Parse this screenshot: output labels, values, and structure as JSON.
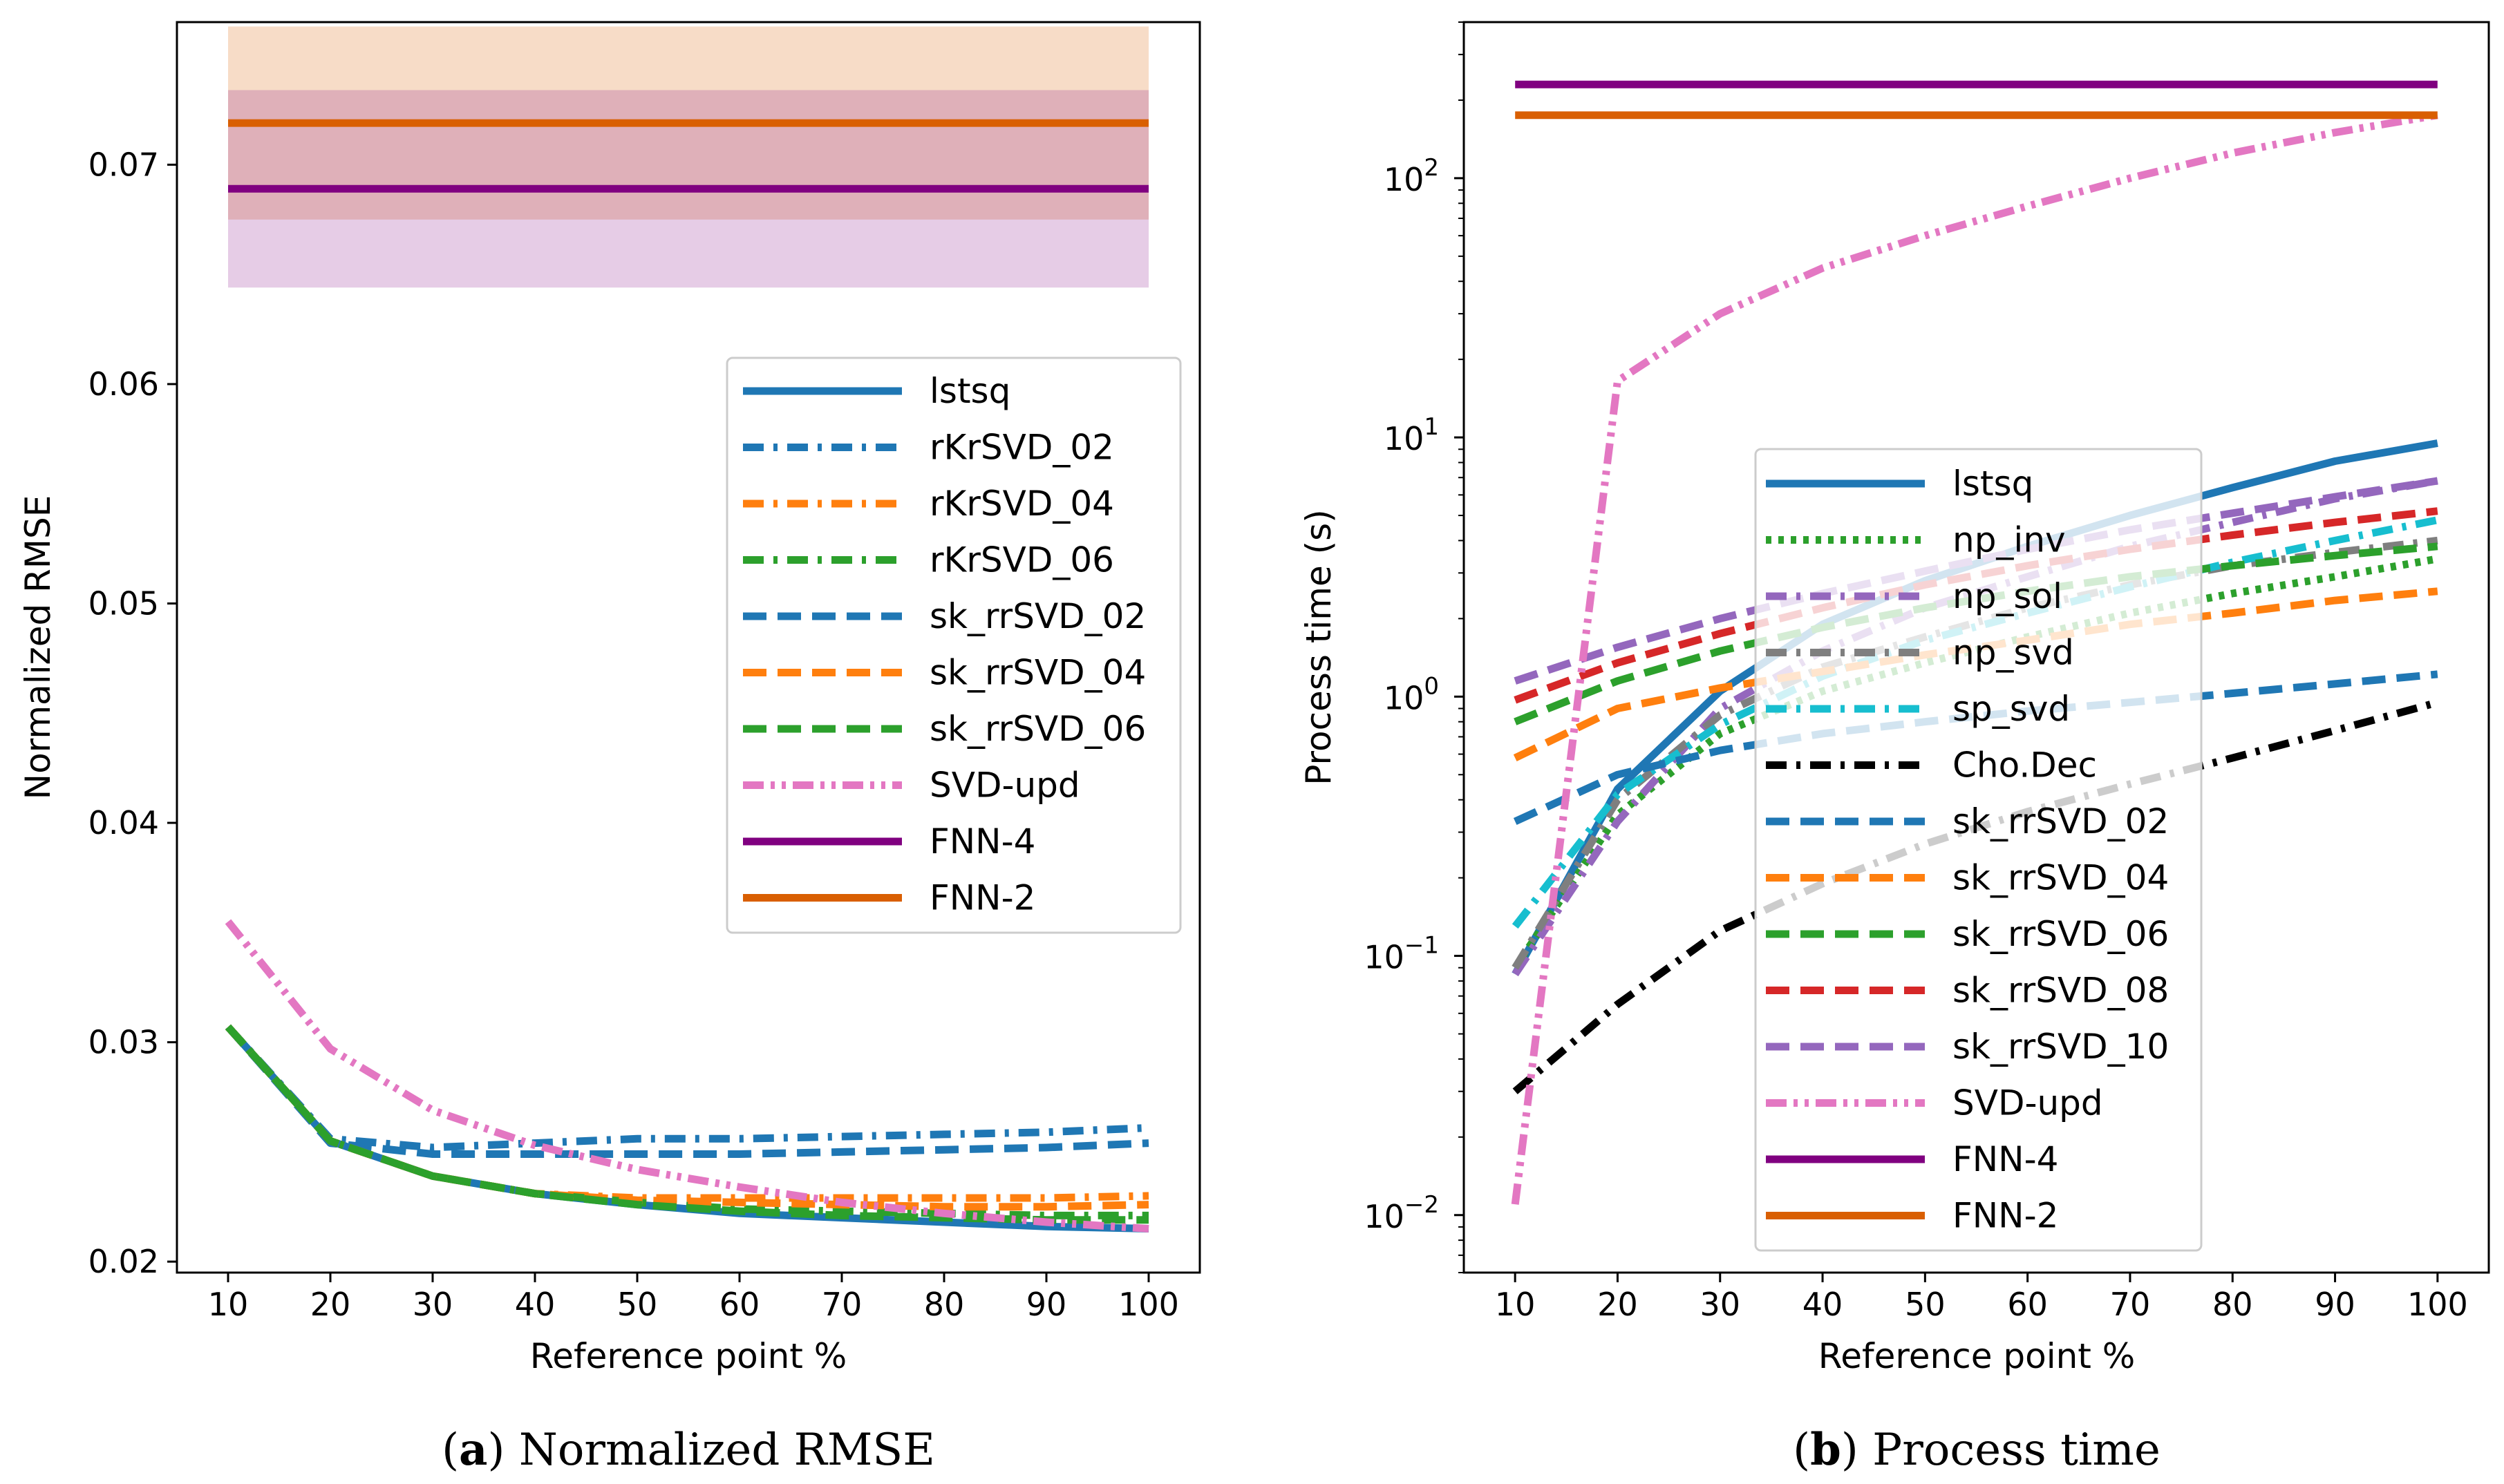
{
  "chart_data": [
    {
      "type": "line",
      "scale": "linear",
      "caption_tag": "a",
      "caption_text": "Normalized RMSE",
      "xlabel": "Reference point %",
      "ylabel": "Normalized RMSE",
      "x": [
        10,
        20,
        30,
        40,
        50,
        60,
        70,
        80,
        90,
        100
      ],
      "xticks": [
        "10",
        "20",
        "30",
        "40",
        "50",
        "60",
        "70",
        "80",
        "90",
        "100"
      ],
      "xlim": [
        5,
        105
      ],
      "ylim": [
        0.0195,
        0.0765
      ],
      "yticks": [
        0.02,
        0.03,
        0.04,
        0.05,
        0.06,
        0.07
      ],
      "ytick_labels": [
        "0.02",
        "0.03",
        "0.04",
        "0.05",
        "0.06",
        "0.07"
      ],
      "grid": false,
      "legend_position": "center-right",
      "bands": [
        {
          "name": "FNN-2 band",
          "color": "#d95f02",
          "opacity": 0.22,
          "lower": 0.0675,
          "upper": 0.0763
        },
        {
          "name": "FNN-4 band",
          "color": "#800080",
          "opacity": 0.2,
          "lower": 0.0644,
          "upper": 0.0734
        }
      ],
      "series": [
        {
          "name": "lstsq",
          "color": "#1f77b4",
          "dash": "solid",
          "values": [
            0.0307,
            0.0255,
            0.0239,
            0.0231,
            0.0226,
            0.0222,
            0.022,
            0.0218,
            0.0216,
            0.0215
          ]
        },
        {
          "name": "rKrSVD_02",
          "color": "#1f77b4",
          "dash": "dashdot",
          "values": [
            0.0307,
            0.0256,
            0.0252,
            0.0254,
            0.0256,
            0.0256,
            0.0257,
            0.0258,
            0.0259,
            0.0261
          ]
        },
        {
          "name": "rKrSVD_04",
          "color": "#ff7f0e",
          "dash": "dashdot",
          "values": [
            0.0307,
            0.0255,
            0.0239,
            0.0231,
            0.0229,
            0.0229,
            0.0229,
            0.0229,
            0.0229,
            0.023
          ]
        },
        {
          "name": "rKrSVD_06",
          "color": "#2ca02c",
          "dash": "dashdot",
          "values": [
            0.0307,
            0.0255,
            0.0239,
            0.0231,
            0.0227,
            0.0224,
            0.0223,
            0.0222,
            0.0221,
            0.0221
          ]
        },
        {
          "name": "sk_rrSVD_02",
          "color": "#1f77b4",
          "dash": "dashed",
          "values": [
            0.0307,
            0.0254,
            0.0249,
            0.0249,
            0.0249,
            0.0249,
            0.025,
            0.0251,
            0.0252,
            0.0254
          ]
        },
        {
          "name": "sk_rrSVD_04",
          "color": "#ff7f0e",
          "dash": "dashed",
          "values": [
            0.0307,
            0.0255,
            0.0239,
            0.0231,
            0.0228,
            0.0227,
            0.0226,
            0.0225,
            0.0225,
            0.0226
          ]
        },
        {
          "name": "sk_rrSVD_06",
          "color": "#2ca02c",
          "dash": "dashed",
          "values": [
            0.0307,
            0.0255,
            0.0239,
            0.0231,
            0.0226,
            0.0223,
            0.0221,
            0.022,
            0.0219,
            0.0219
          ]
        },
        {
          "name": "SVD-upd",
          "color": "#e377c2",
          "dash": "dashdotdot",
          "values": [
            0.0355,
            0.0297,
            0.0269,
            0.0253,
            0.0242,
            0.0234,
            0.0227,
            0.0222,
            0.0218,
            0.0215
          ]
        },
        {
          "name": "FNN-4",
          "color": "#800080",
          "dash": "solid",
          "values": [
            0.0689,
            0.0689,
            0.0689,
            0.0689,
            0.0689,
            0.0689,
            0.0689,
            0.0689,
            0.0689,
            0.0689
          ]
        },
        {
          "name": "FNN-2",
          "color": "#d95f02",
          "dash": "solid",
          "values": [
            0.0719,
            0.0719,
            0.0719,
            0.0719,
            0.0719,
            0.0719,
            0.0719,
            0.0719,
            0.0719,
            0.0719
          ]
        }
      ]
    },
    {
      "type": "line",
      "scale": "log",
      "caption_tag": "b",
      "caption_text": "Process time",
      "xlabel": "Reference point %",
      "ylabel": "Process time (s)",
      "x": [
        10,
        20,
        30,
        40,
        50,
        60,
        70,
        80,
        90,
        100
      ],
      "xticks": [
        "10",
        "20",
        "30",
        "40",
        "50",
        "60",
        "70",
        "80",
        "90",
        "100"
      ],
      "xlim": [
        5,
        105
      ],
      "ylim": [
        0.006,
        400
      ],
      "yticks": [
        0.01,
        0.1,
        1,
        10,
        100
      ],
      "ytick_exponents": [
        "−2",
        "−1",
        "0",
        "1",
        "2"
      ],
      "ytick_base": "10",
      "grid": false,
      "legend_position": "center",
      "series": [
        {
          "name": "lstsq",
          "color": "#1f77b4",
          "dash": "solid",
          "values": [
            0.085,
            0.44,
            1.05,
            1.9,
            2.8,
            3.8,
            5.0,
            6.4,
            8.1,
            9.5
          ]
        },
        {
          "name": "np_inv",
          "color": "#2ca02c",
          "dash": "dotted",
          "values": [
            0.09,
            0.35,
            0.72,
            1.05,
            1.35,
            1.7,
            2.1,
            2.5,
            2.9,
            3.4
          ]
        },
        {
          "name": "np_sol",
          "color": "#9467bd",
          "dash": "dashdot",
          "values": [
            0.085,
            0.33,
            0.9,
            1.5,
            2.2,
            2.9,
            3.8,
            4.7,
            5.8,
            6.8
          ]
        },
        {
          "name": "np_svd",
          "color": "#7f7f7f",
          "dash": "dashdot",
          "values": [
            0.09,
            0.4,
            0.85,
            1.3,
            1.7,
            2.2,
            2.7,
            3.2,
            3.6,
            4.0
          ]
        },
        {
          "name": "sp_svd",
          "color": "#17becf",
          "dash": "dashdot",
          "values": [
            0.13,
            0.42,
            0.78,
            1.2,
            1.65,
            2.1,
            2.65,
            3.3,
            4.0,
            4.8
          ]
        },
        {
          "name": "Cho.Dec",
          "color": "#000000",
          "dash": "dashdot",
          "values": [
            0.03,
            0.065,
            0.125,
            0.19,
            0.27,
            0.36,
            0.46,
            0.58,
            0.74,
            0.95
          ]
        },
        {
          "name": "sk_rrSVD_02",
          "color": "#1f77b4",
          "dash": "dashed",
          "values": [
            0.33,
            0.5,
            0.62,
            0.72,
            0.8,
            0.88,
            0.95,
            1.03,
            1.12,
            1.22
          ]
        },
        {
          "name": "sk_rrSVD_04",
          "color": "#ff7f0e",
          "dash": "dashed",
          "values": [
            0.58,
            0.9,
            1.08,
            1.25,
            1.45,
            1.65,
            1.9,
            2.1,
            2.35,
            2.55
          ]
        },
        {
          "name": "sk_rrSVD_06",
          "color": "#2ca02c",
          "dash": "dashed",
          "values": [
            0.8,
            1.15,
            1.5,
            1.85,
            2.2,
            2.55,
            2.9,
            3.2,
            3.5,
            3.8
          ]
        },
        {
          "name": "sk_rrSVD_08",
          "color": "#d62728",
          "dash": "dashed",
          "values": [
            0.97,
            1.35,
            1.75,
            2.2,
            2.7,
            3.2,
            3.7,
            4.2,
            4.7,
            5.2
          ]
        },
        {
          "name": "sk_rrSVD_10",
          "color": "#9467bd",
          "dash": "dashed",
          "values": [
            1.15,
            1.55,
            2.0,
            2.5,
            3.05,
            3.7,
            4.4,
            5.1,
            5.9,
            6.8
          ]
        },
        {
          "name": "SVD-upd",
          "color": "#e377c2",
          "dash": "dashdotdot",
          "values": [
            0.011,
            16.5,
            30,
            45,
            60,
            78,
            100,
            125,
            150,
            175
          ]
        },
        {
          "name": "FNN-4",
          "color": "#800080",
          "dash": "solid",
          "values": [
            230,
            230,
            230,
            230,
            230,
            230,
            230,
            230,
            230,
            230
          ]
        },
        {
          "name": "FNN-2",
          "color": "#d95f02",
          "dash": "solid",
          "values": [
            175,
            175,
            175,
            175,
            175,
            175,
            175,
            175,
            175,
            175
          ]
        }
      ]
    }
  ]
}
